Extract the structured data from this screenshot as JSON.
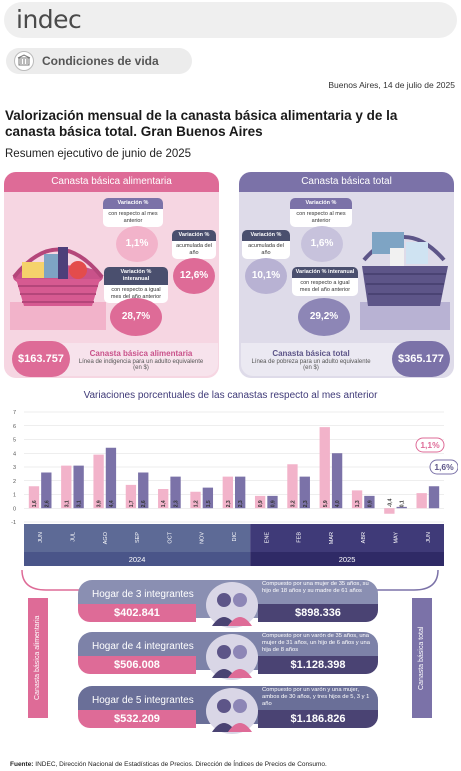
{
  "header": {
    "logo_text": "indec",
    "section_label": "Condiciones de vida",
    "date": "Buenos Aires, 14 de julio de 2025"
  },
  "report": {
    "title": "Valorización mensual de la canasta básica alimentaria y de la canasta básica total. Gran Buenos Aires",
    "subtitle": "Resumen ejecutivo de junio de 2025"
  },
  "cba": {
    "title": "Canasta básica alimentaria",
    "var_monthly_label": "Variación %",
    "var_monthly_sub": "con respecto al mes anterior",
    "var_monthly_value": "1,1%",
    "var_accum_label": "Variación %",
    "var_accum_sub": "acumulada del año",
    "var_accum_value": "12,6%",
    "var_yoy_label": "Variación % interanual",
    "var_yoy_sub": "con respecto a igual mes del año anterior",
    "var_yoy_value": "28,7%",
    "amount": "$163.757",
    "amount_title": "Canasta básica alimentaria",
    "amount_sub": "Línea de indigencia para un adulto equivalente (en $)",
    "colors": {
      "main": "#de6b97",
      "light": "#f6d6e2",
      "circle": "#f2b3ca"
    }
  },
  "cbt": {
    "title": "Canasta básica total",
    "var_monthly_label": "Variación %",
    "var_monthly_sub": "con respecto al mes anterior",
    "var_monthly_value": "1,6%",
    "var_accum_label": "Variación %",
    "var_accum_sub": "acumulada del año",
    "var_accum_value": "10,1%",
    "var_yoy_label": "Variación % interanual",
    "var_yoy_sub": "con respecto a igual mes del año anterior",
    "var_yoy_value": "29,2%",
    "amount": "$365.177",
    "amount_title": "Canasta básica total",
    "amount_sub": "Línea de pobreza para un adulto equivalente (en $)",
    "colors": {
      "main": "#7b72a8",
      "light": "#dedbe9",
      "circle": "#b8b2d3"
    }
  },
  "chart_data": {
    "type": "bar",
    "title": "Variaciones porcentuales de las canastas respecto al mes anterior",
    "categories": [
      "JUN",
      "JUL",
      "AGO",
      "SEP",
      "OCT",
      "NOV",
      "DIC",
      "ENE",
      "FEB",
      "MAR",
      "ABR",
      "MAY",
      "JUN"
    ],
    "year_labels": [
      "2024",
      "2025"
    ],
    "series": [
      {
        "name": "Canasta básica alimentaria",
        "color": "#f2b3ca",
        "values": [
          1.6,
          3.1,
          3.9,
          1.7,
          1.4,
          1.2,
          2.3,
          0.9,
          3.2,
          5.9,
          1.3,
          -0.4,
          1.1
        ],
        "labels": [
          "1,6",
          "3,1",
          "3,9",
          "1,7",
          "1,4",
          "1,2",
          "2,3",
          "0,9",
          "3,2",
          "5,9",
          "1,3",
          "-0,4",
          "1,1%"
        ]
      },
      {
        "name": "Canasta básica total",
        "color": "#7b72a8",
        "values": [
          2.6,
          3.1,
          4.4,
          2.6,
          2.3,
          1.5,
          2.3,
          0.9,
          2.3,
          4.0,
          0.9,
          0.1,
          1.6
        ],
        "labels": [
          "2,6",
          "3,1",
          "4,4",
          "2,6",
          "2,3",
          "1,5",
          "2,3",
          "0,9",
          "2,3",
          "4,0",
          "0,9",
          "0,1",
          "1,6%"
        ]
      }
    ],
    "y_ticks": [
      "7",
      "6",
      "5",
      "4",
      "3",
      "2",
      "1",
      "0",
      "-1"
    ],
    "ylim": [
      -1,
      7
    ],
    "grid": true
  },
  "households": {
    "side_left": "Canasta básica alimentaria",
    "side_right": "Canasta básica total",
    "rows": [
      {
        "title": "Hogar de 3 integrantes",
        "cba": "$402.841",
        "cbt": "$898.336",
        "desc": "Compuesto por una mujer de 35 años, su hijo de 18 años y su madre de 61 años"
      },
      {
        "title": "Hogar de 4 integrantes",
        "cba": "$506.008",
        "cbt": "$1.128.398",
        "desc": "Compuesto por un varón de 35 años, una mujer de 31 años, un hijo de 6 años y una hija de 8 años"
      },
      {
        "title": "Hogar de 5 integrantes",
        "cba": "$532.209",
        "cbt": "$1.186.826",
        "desc": "Compuesto por un varón y una mujer, ambos de 30 años, y tres hijos de 5, 3 y 1 año"
      }
    ]
  },
  "footer": {
    "label": "Fuente:",
    "text": " INDEC, Dirección Nacional de Estadísticas de Precios. Dirección de Índices de Precios de Consumo."
  }
}
